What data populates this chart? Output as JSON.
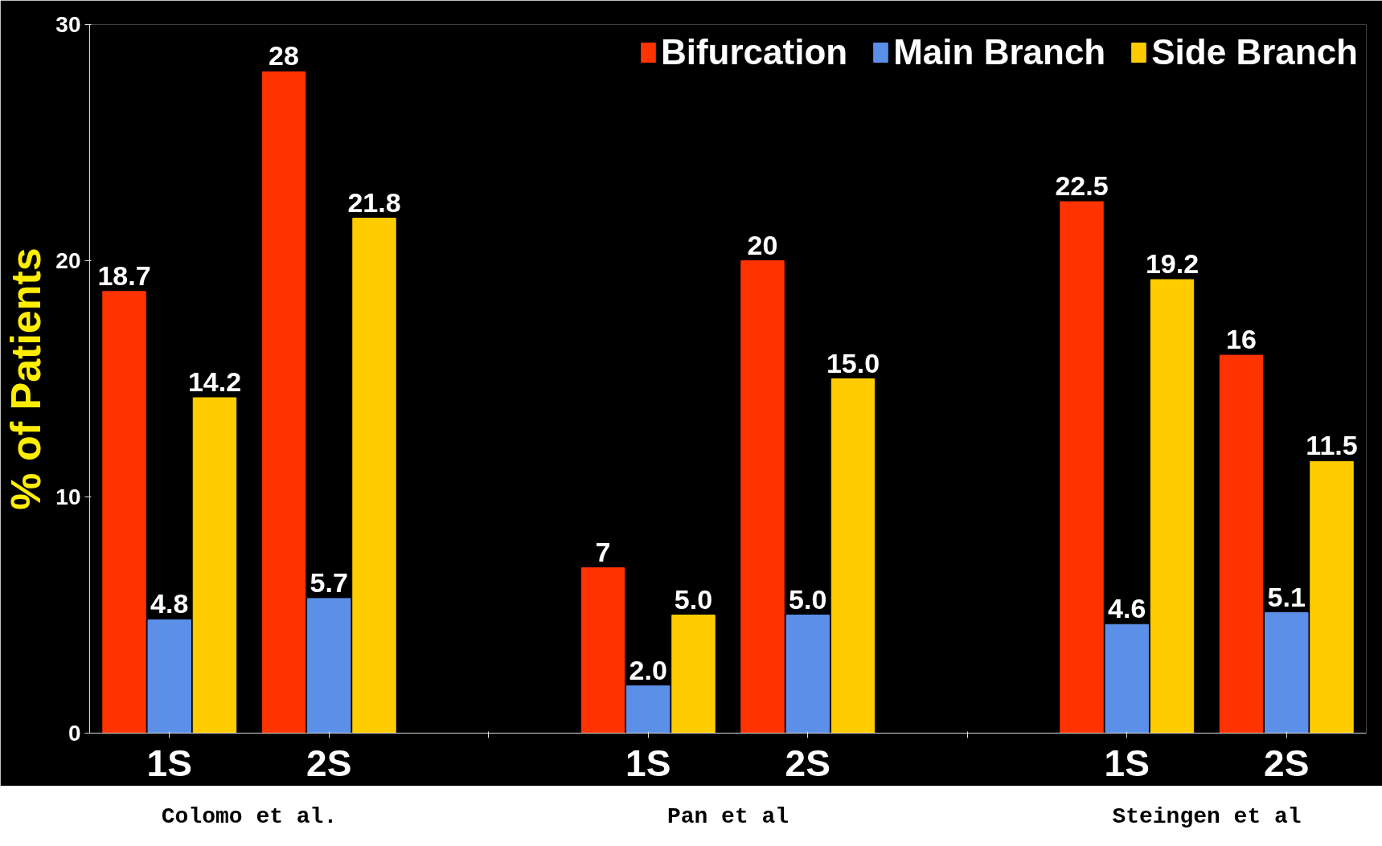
{
  "chart_data": {
    "type": "bar",
    "ylabel": "% of Patients",
    "categories": [
      "1S",
      "2S",
      null,
      "1S",
      "2S",
      null,
      "1S",
      "2S"
    ],
    "series": [
      {
        "name": "Bifurcation",
        "color": "#ff3300",
        "values": [
          18.7,
          28,
          null,
          7,
          20,
          null,
          22.5,
          16
        ],
        "value_labels": [
          "18.7",
          "28",
          null,
          "7",
          "20",
          null,
          "22.5",
          "16"
        ]
      },
      {
        "name": "Main Branch",
        "color": "#5b8fe8",
        "values": [
          4.8,
          5.7,
          null,
          2.0,
          5.0,
          null,
          4.6,
          5.1
        ],
        "value_labels": [
          "4.8",
          "5.7",
          null,
          "2.0",
          "5.0",
          null,
          "4.6",
          "5.1"
        ]
      },
      {
        "name": "Side Branch",
        "color": "#ffcc00",
        "values": [
          14.2,
          21.8,
          null,
          5.0,
          15.0,
          null,
          19.2,
          11.5
        ],
        "value_labels": [
          "14.2",
          "21.8",
          null,
          "5.0",
          "15.0",
          null,
          "19.2",
          "11.5"
        ]
      }
    ],
    "ylim": [
      0,
      30
    ],
    "yticks": [
      0,
      10,
      20,
      30
    ],
    "grid": false,
    "legend": "top right",
    "annotations": [
      "Colomo et al.",
      "Pan et al",
      "Steingen et al"
    ]
  }
}
